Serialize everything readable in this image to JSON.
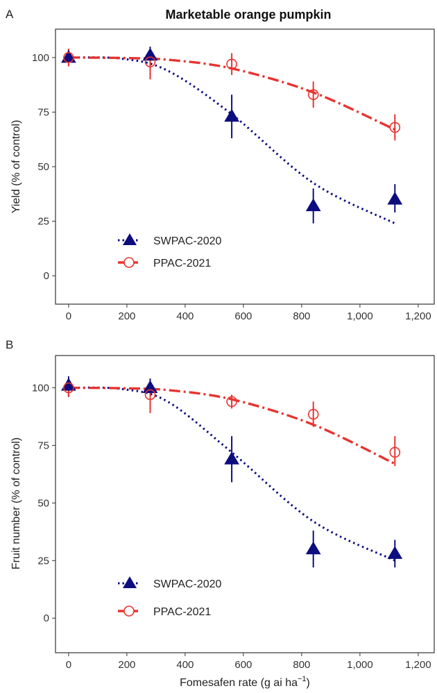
{
  "chart_data": [
    {
      "type": "scatter",
      "panel_label": "A",
      "title": "Marketable orange pumpkin",
      "xlabel": "",
      "ylabel": "Yield (% of control)",
      "xlim": [
        -45,
        1255
      ],
      "ylim": [
        -13,
        113
      ],
      "xticks": [
        0,
        200,
        400,
        600,
        800,
        1000,
        1200
      ],
      "xtick_labels": [
        "0",
        "200",
        "400",
        "600",
        "800",
        "1,000",
        "1,200"
      ],
      "yticks": [
        0,
        25,
        50,
        75,
        100
      ],
      "ytick_labels": [
        "0",
        "25",
        "50",
        "75",
        "100"
      ],
      "grid": false,
      "legend_position": "bottom-left",
      "series": [
        {
          "name": "SWPAC-2020",
          "color": "#0d0d80",
          "marker": "filled-triangle",
          "line": "dotted",
          "x": [
            0,
            280,
            560,
            840,
            1120
          ],
          "y": [
            100,
            101,
            73,
            32,
            35
          ],
          "err_low": [
            96,
            96,
            63,
            24,
            29
          ],
          "err_high": [
            104,
            105,
            83,
            40,
            42
          ],
          "fit_y": [
            100,
            99.5,
            94,
            74,
            42.5,
            24
          ]
        },
        {
          "name": "PPAC-2021",
          "color": "#e8332f",
          "marker": "open-circle",
          "line": "dashdot",
          "x": [
            0,
            280,
            560,
            840,
            1120
          ],
          "y": [
            100,
            98,
            97,
            83,
            68
          ],
          "err_low": [
            96,
            90,
            92,
            77,
            62
          ],
          "err_high": [
            104,
            104,
            102,
            89,
            74
          ],
          "fit_y": [
            100,
            99.8,
            99,
            95,
            84,
            67
          ]
        }
      ],
      "fit_x": [
        0,
        180,
        340,
        560,
        840,
        1120
      ]
    },
    {
      "type": "scatter",
      "panel_label": "B",
      "title": "",
      "xlabel": "Fomesafen rate (g ai ha⁻¹)",
      "ylabel": "Fruit number (% of control)",
      "xlim": [
        -45,
        1255
      ],
      "ylim": [
        -15,
        114
      ],
      "xticks": [
        0,
        200,
        400,
        600,
        800,
        1000,
        1200
      ],
      "xtick_labels": [
        "0",
        "200",
        "400",
        "600",
        "800",
        "1,000",
        "1,200"
      ],
      "yticks": [
        0,
        25,
        50,
        75,
        100
      ],
      "ytick_labels": [
        "0",
        "25",
        "50",
        "75",
        "100"
      ],
      "grid": false,
      "legend_position": "bottom-left",
      "series": [
        {
          "name": "SWPAC-2020",
          "color": "#0d0d80",
          "marker": "filled-triangle",
          "line": "dotted",
          "x": [
            0,
            280,
            560,
            840,
            1120
          ],
          "y": [
            101,
            100,
            69,
            30,
            28
          ],
          "err_low": [
            96,
            95,
            59,
            22,
            22
          ],
          "err_high": [
            105,
            104,
            79,
            38,
            34
          ],
          "fit_y": [
            100,
            99.5,
            94,
            72,
            42,
            25
          ]
        },
        {
          "name": "PPAC-2021",
          "color": "#e8332f",
          "marker": "open-circle",
          "line": "dashdot",
          "x": [
            0,
            280,
            560,
            840,
            1120
          ],
          "y": [
            100,
            97,
            94,
            88.5,
            72
          ],
          "err_low": [
            96,
            89,
            91,
            83,
            66
          ],
          "err_high": [
            104,
            102,
            97,
            94,
            79
          ],
          "fit_y": [
            100,
            99.8,
            99,
            95,
            84,
            67
          ]
        }
      ],
      "fit_x": [
        0,
        180,
        340,
        560,
        840,
        1120
      ]
    }
  ]
}
